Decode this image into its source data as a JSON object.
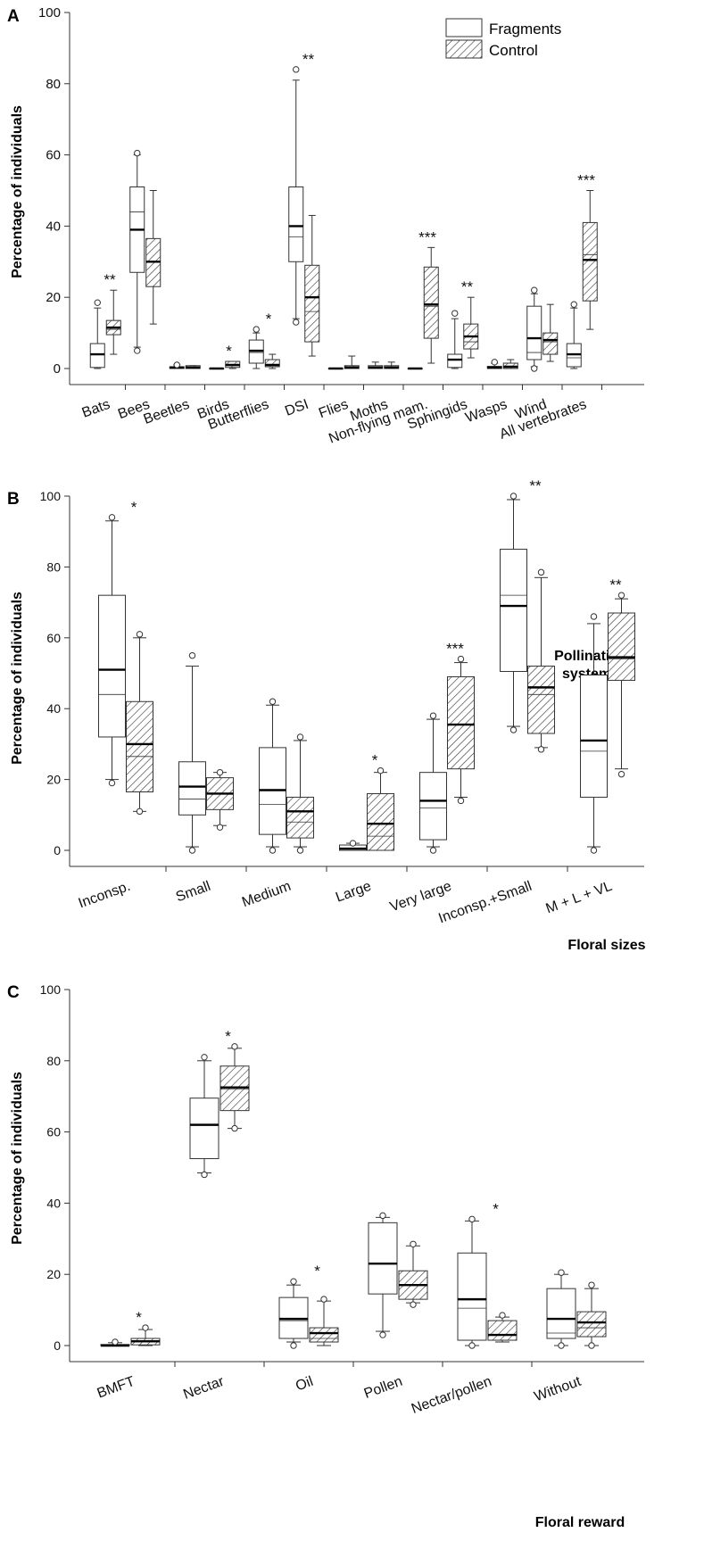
{
  "figure": {
    "legend": [
      {
        "label": "Fragments",
        "pattern": "plain"
      },
      {
        "label": "Control",
        "pattern": "hatched"
      }
    ]
  },
  "chart_data": [
    {
      "panel": "A",
      "type": "box",
      "ylabel": "Percentage of individuals",
      "xlabel_lines": [
        "Pollination",
        "systems"
      ],
      "ylim": [
        0,
        100
      ],
      "yticks": [
        0,
        20,
        40,
        60,
        80,
        100
      ],
      "legend_position": "top-right",
      "categories": [
        "Bats",
        "Bees",
        "Beetles",
        "Birds",
        "Butterflies",
        "DSI",
        "Flies",
        "Moths",
        "Non-flying mam.",
        "Sphingids",
        "Wasps",
        "Wind",
        "All vertebrates"
      ],
      "significance": [
        "**",
        "",
        "",
        "*",
        "*",
        "**",
        "",
        "",
        "***",
        "**",
        "",
        "",
        "***"
      ],
      "series": [
        {
          "name": "Fragments",
          "boxes": [
            {
              "min": 0,
              "q1": 0.3,
              "median": 4,
              "q3": 7,
              "max": 17,
              "mean": 4,
              "outliers": [
                18.5
              ]
            },
            {
              "min": 6,
              "q1": 27,
              "median": 39,
              "q3": 51,
              "max": 60,
              "mean": 44,
              "outliers": [
                60.5,
                5
              ]
            },
            {
              "min": 0,
              "q1": 0,
              "median": 0.3,
              "q3": 0.5,
              "max": 1,
              "mean": 0.3,
              "outliers": [
                1
              ]
            },
            {
              "min": 0,
              "q1": 0,
              "median": 0,
              "q3": 0,
              "max": 0,
              "mean": 0,
              "outliers": []
            },
            {
              "min": 0,
              "q1": 1.5,
              "median": 5,
              "q3": 8,
              "max": 10,
              "mean": 4.5,
              "outliers": [
                11
              ]
            },
            {
              "min": 14,
              "q1": 30,
              "median": 40,
              "q3": 51,
              "max": 81,
              "mean": 37,
              "outliers": [
                84,
                13
              ]
            },
            {
              "min": 0,
              "q1": 0,
              "median": 0,
              "q3": 0,
              "max": 0,
              "mean": 0,
              "outliers": []
            },
            {
              "min": 0,
              "q1": 0,
              "median": 0.3,
              "q3": 0.8,
              "max": 1.8,
              "mean": 0.3,
              "outliers": []
            },
            {
              "min": 0,
              "q1": 0,
              "median": 0,
              "q3": 0,
              "max": 0,
              "mean": 0,
              "outliers": []
            },
            {
              "min": 0,
              "q1": 0.3,
              "median": 2.5,
              "q3": 4,
              "max": 14,
              "mean": 2.5,
              "outliers": [
                15.5
              ]
            },
            {
              "min": 0,
              "q1": 0,
              "median": 0.3,
              "q3": 0.6,
              "max": 1.5,
              "mean": 0.4,
              "outliers": [
                1.8
              ]
            },
            {
              "min": 0.5,
              "q1": 2.5,
              "median": 8.5,
              "q3": 17.5,
              "max": 21,
              "mean": 4.5,
              "outliers": [
                22,
                0
              ]
            },
            {
              "min": 0,
              "q1": 0.5,
              "median": 4,
              "q3": 7,
              "max": 17,
              "mean": 3,
              "outliers": [
                18
              ]
            }
          ]
        },
        {
          "name": "Control",
          "boxes": [
            {
              "min": 4,
              "q1": 9.5,
              "median": 11.5,
              "q3": 13.5,
              "max": 22,
              "mean": 11,
              "outliers": []
            },
            {
              "min": 12.5,
              "q1": 23,
              "median": 30,
              "q3": 36.5,
              "max": 50,
              "mean": 30,
              "outliers": []
            },
            {
              "min": 0,
              "q1": 0,
              "median": 0.3,
              "q3": 0.8,
              "max": 0.8,
              "mean": 0.4,
              "outliers": []
            },
            {
              "min": 0,
              "q1": 0.3,
              "median": 1,
              "q3": 2,
              "max": 2,
              "mean": 0.8,
              "outliers": []
            },
            {
              "min": 0,
              "q1": 0.5,
              "median": 1,
              "q3": 2.5,
              "max": 4,
              "mean": 1,
              "outliers": []
            },
            {
              "min": 3.5,
              "q1": 7.5,
              "median": 20,
              "q3": 29,
              "max": 43,
              "mean": 16,
              "outliers": []
            },
            {
              "min": 0,
              "q1": 0,
              "median": 0.3,
              "q3": 0.8,
              "max": 3.5,
              "mean": 0.3,
              "outliers": []
            },
            {
              "min": 0,
              "q1": 0,
              "median": 0.3,
              "q3": 0.8,
              "max": 1.8,
              "mean": 0.3,
              "outliers": []
            },
            {
              "min": 1.5,
              "q1": 8.5,
              "median": 18,
              "q3": 28.5,
              "max": 34,
              "mean": 17.5,
              "outliers": []
            },
            {
              "min": 3,
              "q1": 5.5,
              "median": 9,
              "q3": 12.5,
              "max": 20,
              "mean": 7.5,
              "outliers": []
            },
            {
              "min": 0,
              "q1": 0,
              "median": 0.5,
              "q3": 1.5,
              "max": 2.5,
              "mean": 0.6,
              "outliers": []
            },
            {
              "min": 2,
              "q1": 4,
              "median": 8,
              "q3": 10,
              "max": 18,
              "mean": 7.5,
              "outliers": []
            },
            {
              "min": 11,
              "q1": 19,
              "median": 30.5,
              "q3": 41,
              "max": 50,
              "mean": 32,
              "outliers": []
            }
          ]
        }
      ]
    },
    {
      "panel": "B",
      "type": "box",
      "ylabel": "Percentage of individuals",
      "xlabel_lines": [
        "Floral sizes"
      ],
      "ylim": [
        0,
        100
      ],
      "yticks": [
        0,
        20,
        40,
        60,
        80,
        100
      ],
      "categories": [
        "Inconsp.",
        "Small",
        "Medium",
        "Large",
        "Very large",
        "Inconsp.+Small",
        "M + L + VL"
      ],
      "significance": [
        "*",
        "",
        "",
        "*",
        "***",
        "**",
        "**"
      ],
      "series": [
        {
          "name": "Fragments",
          "boxes": [
            {
              "min": 20,
              "q1": 32,
              "median": 51,
              "q3": 72,
              "max": 93,
              "mean": 44,
              "outliers": [
                94,
                19
              ]
            },
            {
              "min": 1,
              "q1": 10,
              "median": 18,
              "q3": 25,
              "max": 52,
              "mean": 14.5,
              "outliers": [
                55,
                0
              ]
            },
            {
              "min": 1,
              "q1": 4.5,
              "median": 17,
              "q3": 29,
              "max": 41,
              "mean": 13,
              "outliers": [
                42,
                0
              ]
            },
            {
              "min": 0,
              "q1": 0,
              "median": 0.5,
              "q3": 1.5,
              "max": 2,
              "mean": 0.5,
              "outliers": [
                2
              ]
            },
            {
              "min": 1,
              "q1": 3,
              "median": 14,
              "q3": 22,
              "max": 37,
              "mean": 12,
              "outliers": [
                38,
                0
              ]
            },
            {
              "min": 35,
              "q1": 50.5,
              "median": 69,
              "q3": 85,
              "max": 99,
              "mean": 72,
              "outliers": [
                100,
                34
              ]
            },
            {
              "min": 1,
              "q1": 15,
              "median": 31,
              "q3": 49.5,
              "max": 64,
              "mean": 28,
              "outliers": [
                66,
                0
              ]
            }
          ]
        },
        {
          "name": "Control",
          "boxes": [
            {
              "min": 11,
              "q1": 16.5,
              "median": 30,
              "q3": 42,
              "max": 60,
              "mean": 26.5,
              "outliers": [
                61,
                11
              ]
            },
            {
              "min": 7,
              "q1": 11.5,
              "median": 16,
              "q3": 20.5,
              "max": 22,
              "mean": 16,
              "outliers": [
                22,
                6.5
              ]
            },
            {
              "min": 1,
              "q1": 3.5,
              "median": 11,
              "q3": 15,
              "max": 31,
              "mean": 8,
              "outliers": [
                32,
                0
              ]
            },
            {
              "min": 0,
              "q1": 0,
              "median": 7.5,
              "q3": 16,
              "max": 22,
              "mean": 4,
              "outliers": [
                22.5
              ]
            },
            {
              "min": 15,
              "q1": 23,
              "median": 35.5,
              "q3": 49,
              "max": 53,
              "mean": 35.5,
              "outliers": [
                54,
                14
              ]
            },
            {
              "min": 29,
              "q1": 33,
              "median": 46,
              "q3": 52,
              "max": 77,
              "mean": 44,
              "outliers": [
                78.5,
                28.5
              ]
            },
            {
              "min": 23,
              "q1": 48,
              "median": 54.5,
              "q3": 67,
              "max": 71,
              "mean": 54,
              "outliers": [
                72,
                21.5
              ]
            }
          ]
        }
      ]
    },
    {
      "panel": "C",
      "type": "box",
      "ylabel": "Percentage of individuals",
      "xlabel_lines": [
        "Floral reward"
      ],
      "ylim": [
        0,
        100
      ],
      "yticks": [
        0,
        20,
        40,
        60,
        80,
        100
      ],
      "categories": [
        "BMFT",
        "Nectar",
        "Oil",
        "Pollen",
        "Nectar/pollen",
        "Without"
      ],
      "significance": [
        "*",
        "*",
        "*",
        "",
        "*",
        ""
      ],
      "series": [
        {
          "name": "Fragments",
          "boxes": [
            {
              "min": 0,
              "q1": 0,
              "median": 0,
              "q3": 0.3,
              "max": 0.8,
              "mean": 0.2,
              "outliers": [
                1
              ]
            },
            {
              "min": 48.5,
              "q1": 52.5,
              "median": 62,
              "q3": 69.5,
              "max": 80,
              "mean": 62,
              "outliers": [
                81,
                48
              ]
            },
            {
              "min": 1,
              "q1": 2,
              "median": 7.5,
              "q3": 13.5,
              "max": 17,
              "mean": 7,
              "outliers": [
                18,
                0
              ]
            },
            {
              "min": 4,
              "q1": 14.5,
              "median": 23,
              "q3": 34.5,
              "max": 36,
              "mean": 23,
              "outliers": [
                36.5,
                3
              ]
            },
            {
              "min": 0,
              "q1": 1.5,
              "median": 13,
              "q3": 26,
              "max": 35,
              "mean": 10.5,
              "outliers": [
                35.5,
                0
              ]
            },
            {
              "min": 0,
              "q1": 2,
              "median": 7.5,
              "q3": 16,
              "max": 20,
              "mean": 3.5,
              "outliers": [
                20.5,
                0
              ]
            }
          ]
        },
        {
          "name": "Control",
          "boxes": [
            {
              "min": 0,
              "q1": 0.2,
              "median": 1.2,
              "q3": 2,
              "max": 4.5,
              "mean": 1,
              "outliers": [
                5
              ]
            },
            {
              "min": 61,
              "q1": 66,
              "median": 72.5,
              "q3": 78.5,
              "max": 83.5,
              "mean": 72,
              "outliers": [
                84,
                61
              ]
            },
            {
              "min": 0,
              "q1": 1,
              "median": 3.5,
              "q3": 5,
              "max": 12.5,
              "mean": 2,
              "outliers": [
                13
              ]
            },
            {
              "min": 12,
              "q1": 13,
              "median": 17,
              "q3": 21,
              "max": 28,
              "mean": 17,
              "outliers": [
                28.5,
                11.5
              ]
            },
            {
              "min": 1,
              "q1": 1.5,
              "median": 3,
              "q3": 7,
              "max": 8,
              "mean": 3,
              "outliers": [
                8.5
              ]
            },
            {
              "min": 0,
              "q1": 2.5,
              "median": 6.5,
              "q3": 9.5,
              "max": 16,
              "mean": 5,
              "outliers": [
                17,
                0
              ]
            }
          ]
        }
      ]
    }
  ]
}
